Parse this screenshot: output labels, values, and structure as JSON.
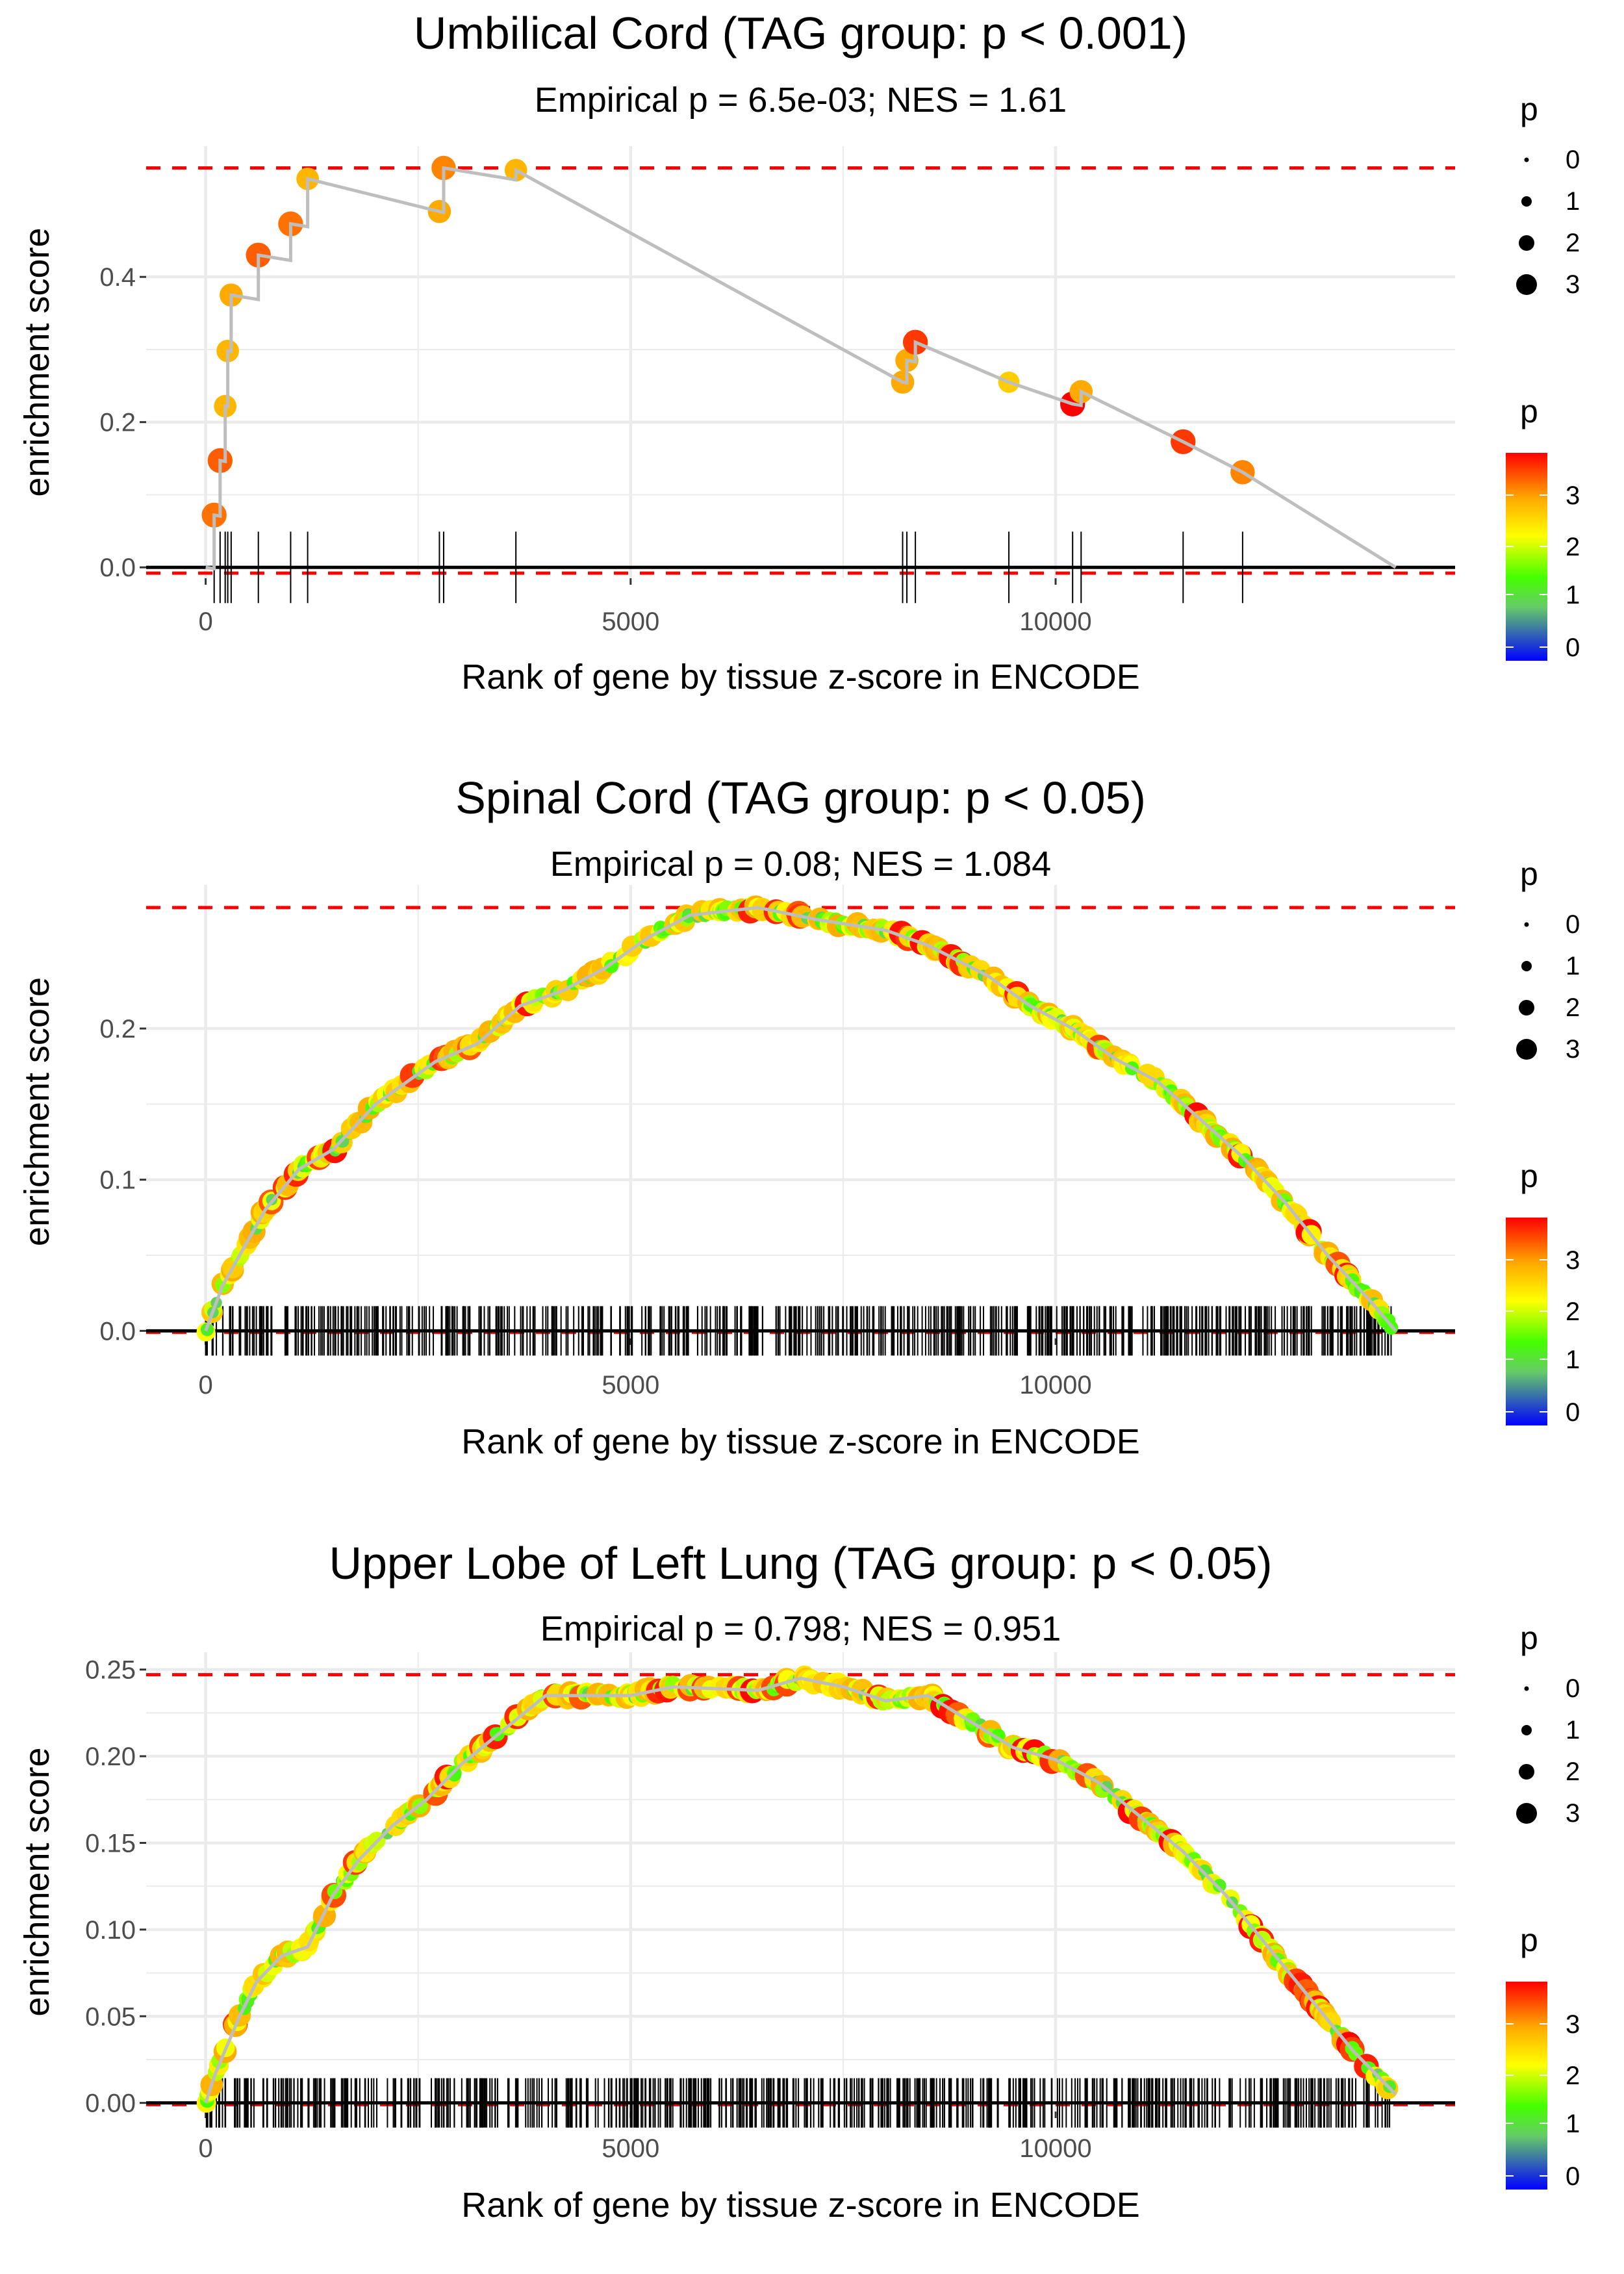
{
  "chart_data": [
    {
      "type": "line",
      "title": "Umbilical Cord (TAG group: p < 0.001)",
      "subtitle": "Empirical p = 6.5e-03; NES = 1.61",
      "xlabel": "Rank of gene by tissue z-score in ENCODE",
      "ylabel": "enrichment score",
      "xlim": [
        -700,
        14700
      ],
      "ylim": [
        -0.015,
        0.58
      ],
      "xticks": [
        0,
        5000,
        10000
      ],
      "xtick_labels": [
        "0",
        "5000",
        "10000"
      ],
      "yticks": [
        0,
        0.2,
        0.4
      ],
      "ytick_labels": [
        "0.0",
        "0.2",
        "0.4"
      ],
      "max_es": 0.55,
      "min_es": -0.008,
      "end_rank": 14000,
      "hits": [
        [
          100,
          0.072,
          3.3
        ],
        [
          170,
          0.147,
          3.4
        ],
        [
          230,
          0.222,
          2.9
        ],
        [
          260,
          0.298,
          2.9
        ],
        [
          300,
          0.375,
          3.0
        ],
        [
          620,
          0.43,
          3.4
        ],
        [
          1000,
          0.473,
          3.3
        ],
        [
          1200,
          0.535,
          2.9
        ],
        [
          2750,
          0.49,
          3.0
        ],
        [
          2800,
          0.55,
          3.2
        ],
        [
          3650,
          0.547,
          2.9
        ],
        [
          8200,
          0.255,
          3.0
        ],
        [
          8250,
          0.285,
          3.0
        ],
        [
          8350,
          0.31,
          3.6
        ],
        [
          9450,
          0.255,
          2.7
        ],
        [
          10200,
          0.225,
          3.9
        ],
        [
          10300,
          0.242,
          3.0
        ],
        [
          11500,
          0.173,
          3.6
        ],
        [
          12200,
          0.131,
          3.2
        ]
      ],
      "grid": true
    },
    {
      "type": "line",
      "title": "Spinal Cord (TAG group: p < 0.05)",
      "subtitle": "Empirical p = 0.08; NES = 1.084",
      "xlabel": "Rank of gene by tissue z-score in ENCODE",
      "ylabel": "enrichment score",
      "xlim": [
        -700,
        14700
      ],
      "ylim": [
        -0.005,
        0.295
      ],
      "xticks": [
        0,
        5000,
        10000
      ],
      "xtick_labels": [
        "0",
        "5000",
        "10000"
      ],
      "yticks": [
        0,
        0.1,
        0.2
      ],
      "ytick_labels": [
        "0.0",
        "0.1",
        "0.2"
      ],
      "max_es": 0.28,
      "min_es": -0.001,
      "end_rank": 14000,
      "curve": [
        [
          0,
          0
        ],
        [
          200,
          0.03
        ],
        [
          400,
          0.05
        ],
        [
          700,
          0.08
        ],
        [
          1100,
          0.107
        ],
        [
          1500,
          0.12
        ],
        [
          2000,
          0.15
        ],
        [
          2700,
          0.178
        ],
        [
          3200,
          0.19
        ],
        [
          3700,
          0.215
        ],
        [
          4200,
          0.225
        ],
        [
          4700,
          0.24
        ],
        [
          5200,
          0.26
        ],
        [
          5700,
          0.275
        ],
        [
          6500,
          0.28
        ],
        [
          7200,
          0.272
        ],
        [
          8000,
          0.265
        ],
        [
          8500,
          0.255
        ],
        [
          9200,
          0.235
        ],
        [
          9700,
          0.215
        ],
        [
          10200,
          0.2
        ],
        [
          10700,
          0.18
        ],
        [
          11200,
          0.165
        ],
        [
          11700,
          0.14
        ],
        [
          12200,
          0.115
        ],
        [
          12700,
          0.085
        ],
        [
          13200,
          0.05
        ],
        [
          13700,
          0.02
        ],
        [
          14000,
          0
        ]
      ],
      "n_hits": 600,
      "grid": true
    },
    {
      "type": "line",
      "title": "Upper Lobe of Left Lung (TAG group: p < 0.05)",
      "subtitle": "Empirical p = 0.798; NES = 0.951",
      "xlabel": "Rank of gene by tissue z-score in ENCODE",
      "ylabel": "enrichment score",
      "xlim": [
        -700,
        14700
      ],
      "ylim": [
        -0.005,
        0.26
      ],
      "xticks": [
        0,
        5000,
        10000
      ],
      "xtick_labels": [
        "0",
        "5000",
        "10000"
      ],
      "yticks": [
        0,
        0.05,
        0.1,
        0.15,
        0.2,
        0.25
      ],
      "ytick_labels": [
        "0.00",
        "0.05",
        "0.10",
        "0.15",
        "0.20",
        "0.25"
      ],
      "max_es": 0.247,
      "min_es": -0.001,
      "end_rank": 14000,
      "curve": [
        [
          0,
          0
        ],
        [
          100,
          0.015
        ],
        [
          200,
          0.027
        ],
        [
          400,
          0.05
        ],
        [
          600,
          0.07
        ],
        [
          900,
          0.085
        ],
        [
          1200,
          0.09
        ],
        [
          1500,
          0.12
        ],
        [
          1800,
          0.14
        ],
        [
          2200,
          0.16
        ],
        [
          2600,
          0.175
        ],
        [
          3000,
          0.195
        ],
        [
          3500,
          0.215
        ],
        [
          4000,
          0.235
        ],
        [
          5000,
          0.235
        ],
        [
          5500,
          0.24
        ],
        [
          6500,
          0.238
        ],
        [
          7000,
          0.245
        ],
        [
          7500,
          0.24
        ],
        [
          8000,
          0.232
        ],
        [
          8500,
          0.235
        ],
        [
          9000,
          0.22
        ],
        [
          9500,
          0.205
        ],
        [
          10000,
          0.198
        ],
        [
          10500,
          0.185
        ],
        [
          11000,
          0.165
        ],
        [
          11500,
          0.145
        ],
        [
          12000,
          0.12
        ],
        [
          12500,
          0.09
        ],
        [
          13000,
          0.06
        ],
        [
          13500,
          0.03
        ],
        [
          14000,
          0.005
        ]
      ],
      "n_hits": 600,
      "grid": true
    }
  ],
  "legend": {
    "size_title": "p",
    "size_labels": [
      "0",
      "1",
      "2",
      "3"
    ],
    "color_title": "p",
    "color_labels": [
      "3",
      "2",
      "1",
      "0"
    ]
  },
  "colors": {
    "dash": "#ff0000",
    "line": "#bebebe",
    "grid": "#ebebeb"
  }
}
